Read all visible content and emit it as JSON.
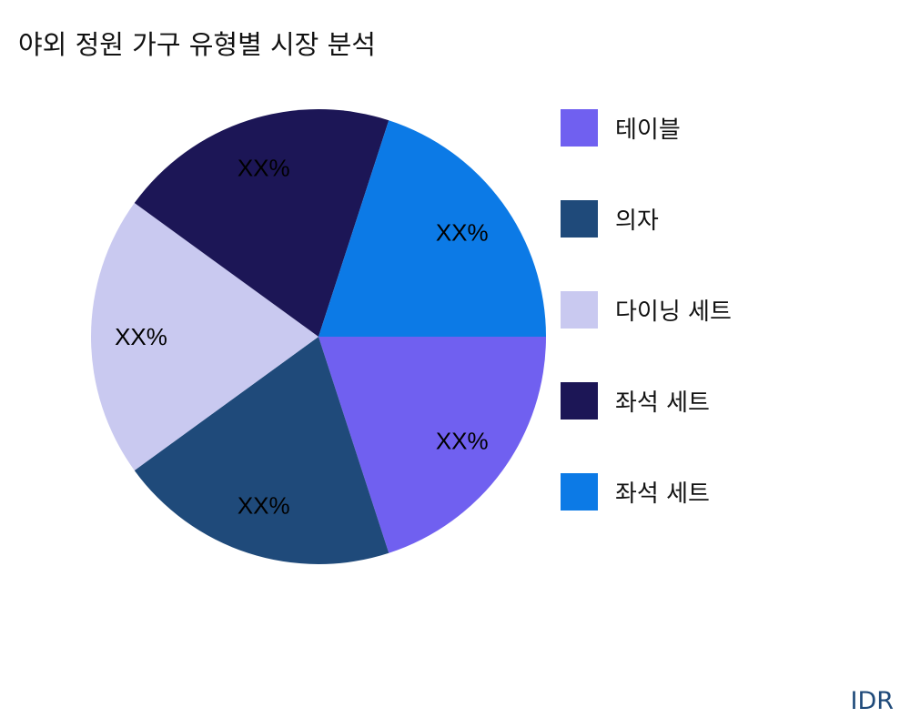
{
  "title": "야외 정원 가구 유형별 시장 분석",
  "brand": "IDR",
  "chart_data": {
    "type": "pie",
    "title": "야외 정원 가구 유형별 시장 분석",
    "legend_position": "right",
    "start_angle_deg": 0,
    "direction": "clockwise",
    "slices": [
      {
        "name": "테이블",
        "value": 20,
        "label": "XX%",
        "color": "#7060F0"
      },
      {
        "name": "의자",
        "value": 20,
        "label": "XX%",
        "color": "#1F4A7A"
      },
      {
        "name": "다이닝 세트",
        "value": 20,
        "label": "XX%",
        "color": "#C9C9F0"
      },
      {
        "name": "좌석 세트",
        "value": 20,
        "label": "XX%",
        "color": "#1C1656"
      },
      {
        "name": "좌석 세트",
        "value": 20,
        "label": "XX%",
        "color": "#0C7AE6"
      }
    ]
  }
}
